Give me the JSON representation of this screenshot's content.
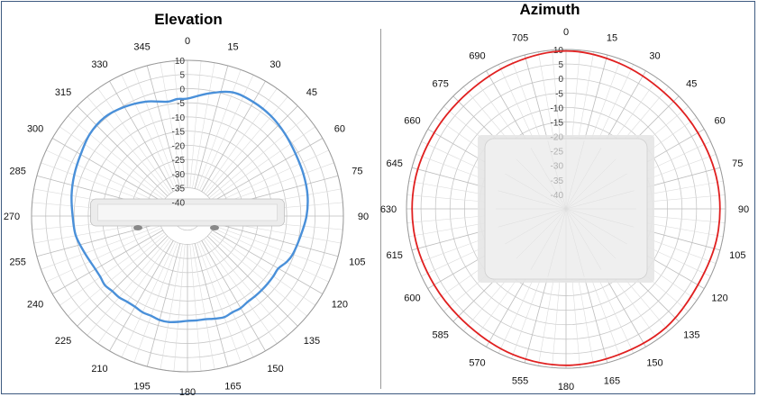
{
  "chart_data": [
    {
      "type": "polar-line",
      "title": "Elevation",
      "angle_labels": [
        "0",
        "15",
        "30",
        "45",
        "60",
        "75",
        "90",
        "105",
        "120",
        "135",
        "150",
        "165",
        "180",
        "195",
        "210",
        "225",
        "240",
        "255",
        "270",
        "285",
        "300",
        "315",
        "330",
        "345"
      ],
      "radial_ticks": [
        10,
        5,
        0,
        -5,
        -10,
        -15,
        -20,
        -25,
        -30,
        -35,
        -40
      ],
      "radial_tick_labels": [
        "10",
        "5",
        "0",
        "-5",
        "-10",
        "-15",
        "-20",
        "-25",
        "-30",
        "-35",
        "-40"
      ],
      "rlim": [
        -45,
        10
      ],
      "grid": true,
      "series": [
        {
          "color": "#4a90d9",
          "angles": [
            0,
            10,
            20,
            30,
            40,
            50,
            60,
            70,
            80,
            90,
            100,
            110,
            115,
            120,
            125,
            130,
            135,
            140,
            145,
            150,
            155,
            160,
            165,
            170,
            175,
            180,
            185,
            190,
            195,
            200,
            205,
            210,
            215,
            220,
            225,
            230,
            235,
            240,
            250,
            260,
            270,
            280,
            290,
            300,
            310,
            320,
            330,
            340,
            350,
            355
          ],
          "values": [
            -3.5,
            -1,
            1.5,
            1.5,
            1,
            0,
            -1,
            -1.5,
            -2,
            -3,
            -4.5,
            -5.5,
            -6.5,
            -8,
            -8,
            -8,
            -8,
            -8,
            -8,
            -7.5,
            -7.5,
            -7,
            -7.5,
            -8,
            -8,
            -8,
            -7.5,
            -7,
            -7,
            -7.5,
            -7.5,
            -8,
            -8,
            -7.5,
            -7.5,
            -7,
            -7.5,
            -7.5,
            -6.5,
            -5,
            -4.5,
            -3.5,
            -2.5,
            -1.5,
            0,
            0.5,
            -0.5,
            -2,
            -4,
            -3.5
          ]
        }
      ]
    },
    {
      "type": "polar-line",
      "title": "Azimuth",
      "angle_labels": [
        "0",
        "15",
        "30",
        "45",
        "60",
        "75",
        "90",
        "105",
        "120",
        "135",
        "150",
        "165",
        "180",
        "555",
        "570",
        "585",
        "600",
        "615",
        "630",
        "645",
        "660",
        "675",
        "690",
        "705"
      ],
      "radial_ticks": [
        10,
        5,
        0,
        -5,
        -10,
        -15,
        -20,
        -25,
        -30,
        -35,
        -40
      ],
      "radial_tick_labels": [
        "10",
        "5",
        "0",
        "-5",
        "-10",
        "-15",
        "-20",
        "-25",
        "-30",
        "-35",
        "-40"
      ],
      "rlim": [
        -45,
        10
      ],
      "grid": true,
      "series": [
        {
          "color": "#e02020",
          "angles": [
            0,
            20,
            40,
            60,
            80,
            100,
            120,
            140,
            160,
            180,
            200,
            220,
            240,
            260,
            280,
            300,
            320,
            340
          ],
          "values": [
            9.5,
            8.5,
            7.5,
            7.5,
            8,
            8,
            7.5,
            8.5,
            8.5,
            9,
            8.5,
            7.5,
            7.5,
            8,
            8,
            7.5,
            7.5,
            8.5
          ]
        }
      ]
    }
  ]
}
